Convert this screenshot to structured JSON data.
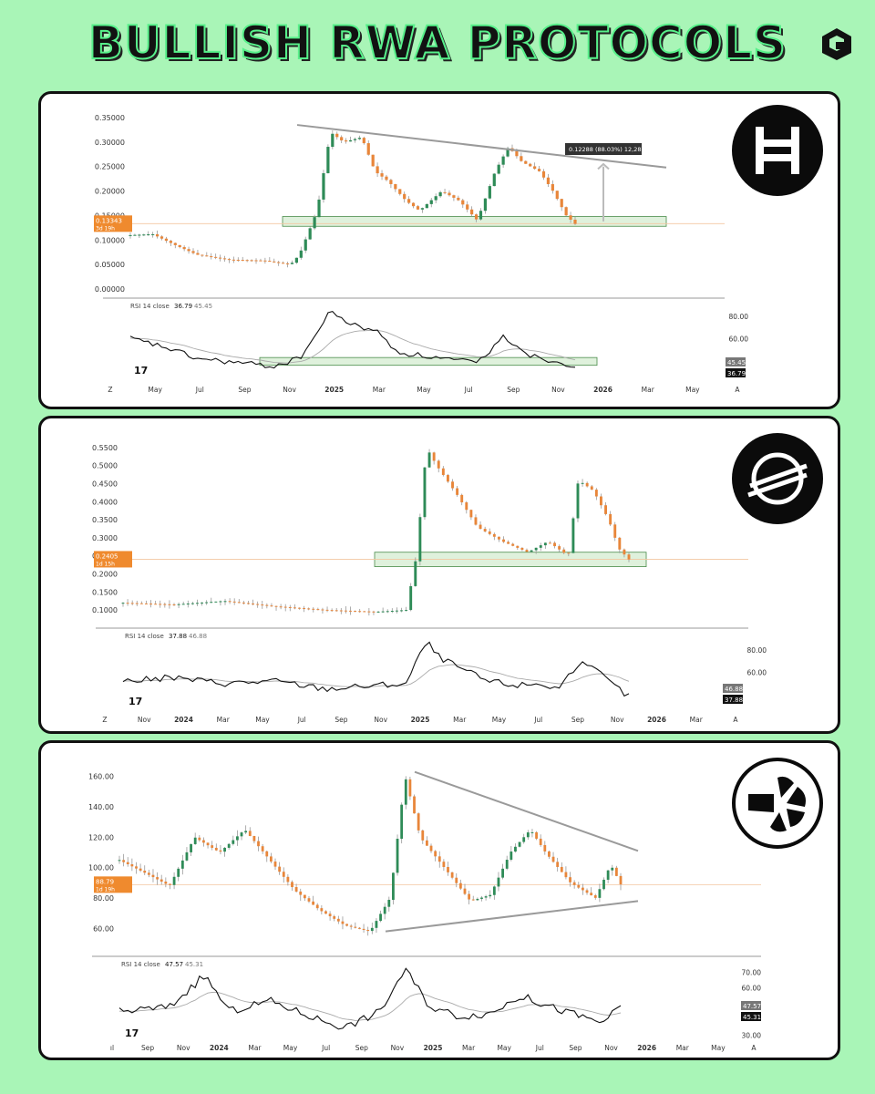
{
  "header": {
    "title": "BULLISH RWA PROTOCOLS",
    "brand_icon": "cube-logo-icon"
  },
  "colors": {
    "background": "#a9f5b7",
    "up": "#2e8b57",
    "down": "#e8863a",
    "zone_fill": "#dff1dc",
    "zone_stroke": "#4a8c4a",
    "trendline": "#9a9a9a"
  },
  "chart_data": [
    {
      "type": "candlestick",
      "logo": "hedera-logo-icon",
      "y_ticks": [
        "0.35000",
        "0.30000",
        "0.25000",
        "0.20000",
        "0.15000",
        "0.10000",
        "0.05000",
        "0.00000"
      ],
      "ylim": [
        0,
        0.35
      ],
      "price_tag": "0.13343",
      "price_tag_sub": "3d 19h",
      "measure_label": "0.12288 (88.03%) 12,288",
      "x_ticks": [
        "Z",
        "May",
        "Jul",
        "Sep",
        "Nov",
        "2025",
        "Mar",
        "May",
        "Jul",
        "Sep",
        "Nov",
        "2026",
        "Mar",
        "May",
        "A"
      ],
      "rsi": {
        "label": "RSI 14 close",
        "value": "36.79",
        "ma": "45.45",
        "y_ticks": [
          "80.00",
          "60.00"
        ],
        "tag_ma": "45.45",
        "tag_value": "36.79"
      }
    },
    {
      "type": "candlestick",
      "logo": "stellar-logo-icon",
      "y_ticks": [
        "0.5500",
        "0.5000",
        "0.4500",
        "0.4000",
        "0.3500",
        "0.3000",
        "0.2500",
        "0.2000",
        "0.1500",
        "0.1000"
      ],
      "ylim": [
        0.08,
        0.57
      ],
      "price_tag": "0.2405",
      "price_tag_sub": "1d 15h",
      "x_ticks": [
        "Z",
        "Nov",
        "2024",
        "Mar",
        "May",
        "Jul",
        "Sep",
        "Nov",
        "2025",
        "Mar",
        "May",
        "Jul",
        "Sep",
        "Nov",
        "2026",
        "Mar",
        "A"
      ],
      "rsi": {
        "label": "RSI 14 close",
        "value": "37.88",
        "ma": "46.88",
        "y_ticks": [
          "80.00",
          "60.00"
        ],
        "tag_ma": "46.88",
        "tag_value": "37.88"
      }
    },
    {
      "type": "candlestick",
      "logo": "ondo-logo-icon",
      "y_ticks": [
        "160.00",
        "140.00",
        "120.00",
        "100.00",
        "80.00",
        "60.00"
      ],
      "ylim": [
        50,
        170
      ],
      "price_tag": "88.79",
      "price_tag_sub": "1d 19h",
      "x_ticks": [
        "ıl",
        "Sep",
        "Nov",
        "2024",
        "Mar",
        "May",
        "Jul",
        "Sep",
        "Nov",
        "2025",
        "Mar",
        "May",
        "Jul",
        "Sep",
        "Nov",
        "2026",
        "Mar",
        "May",
        "A"
      ],
      "rsi": {
        "label": "RSI 14 close",
        "value": "47.57",
        "ma": "45.31",
        "y_ticks": [
          "70.00",
          "60.00",
          "30.00"
        ],
        "tag_value": "47.57",
        "tag_ma": "45.31"
      }
    }
  ]
}
